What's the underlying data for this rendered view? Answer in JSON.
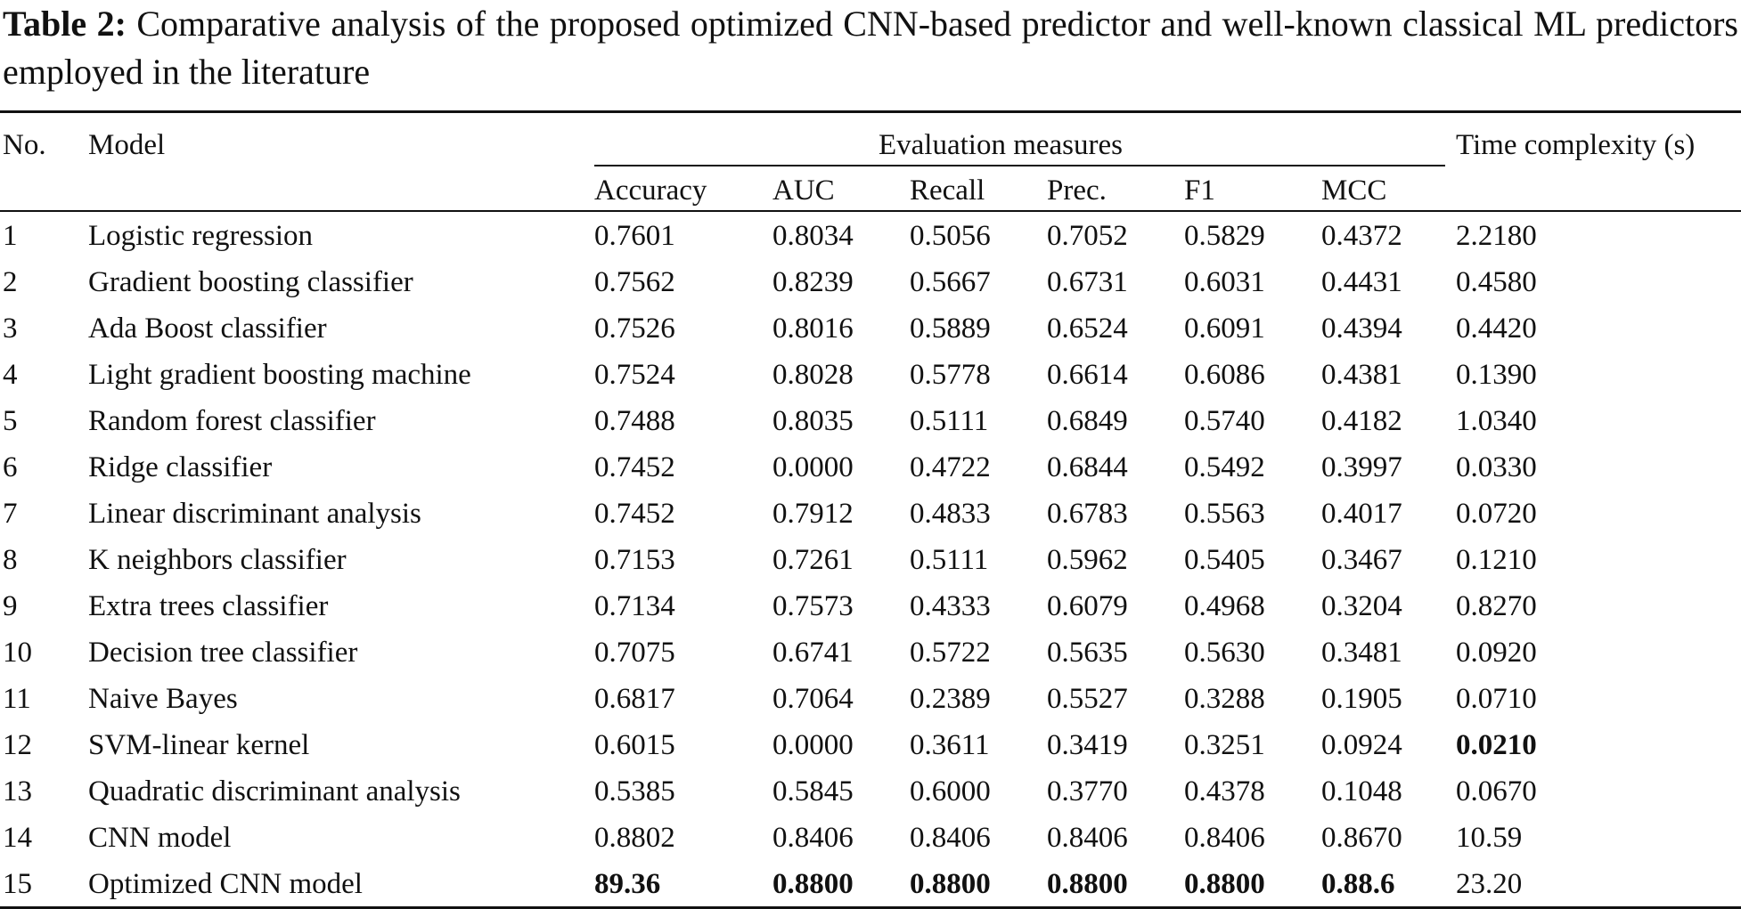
{
  "caption": {
    "label": "Table 2:",
    "text": " Comparative analysis of the proposed optimized CNN-based predictor and well-known classical ML predictors employed in the literature"
  },
  "table": {
    "headers": {
      "no": "No.",
      "model": "Model",
      "group": "Evaluation measures",
      "time": "Time complexity (s)",
      "sub": [
        "Accuracy",
        "AUC",
        "Recall",
        "Prec.",
        "F1",
        "MCC"
      ]
    },
    "rows": [
      {
        "no": "1",
        "model": "Logistic regression",
        "values": [
          "0.7601",
          "0.8034",
          "0.5056",
          "0.7052",
          "0.5829",
          "0.4372",
          "2.2180"
        ]
      },
      {
        "no": "2",
        "model": "Gradient boosting classifier",
        "values": [
          "0.7562",
          "0.8239",
          "0.5667",
          "0.6731",
          "0.6031",
          "0.4431",
          "0.4580"
        ]
      },
      {
        "no": "3",
        "model": "Ada Boost classifier",
        "values": [
          "0.7526",
          "0.8016",
          "0.5889",
          "0.6524",
          "0.6091",
          "0.4394",
          "0.4420"
        ]
      },
      {
        "no": "4",
        "model": "Light gradient boosting machine",
        "values": [
          "0.7524",
          "0.8028",
          "0.5778",
          "0.6614",
          "0.6086",
          "0.4381",
          "0.1390"
        ]
      },
      {
        "no": "5",
        "model": "Random forest classifier",
        "values": [
          "0.7488",
          "0.8035",
          "0.5111",
          "0.6849",
          "0.5740",
          "0.4182",
          "1.0340"
        ]
      },
      {
        "no": "6",
        "model": "Ridge classifier",
        "values": [
          "0.7452",
          "0.0000",
          "0.4722",
          "0.6844",
          "0.5492",
          "0.3997",
          "0.0330"
        ]
      },
      {
        "no": "7",
        "model": "Linear discriminant analysis",
        "values": [
          "0.7452",
          "0.7912",
          "0.4833",
          "0.6783",
          "0.5563",
          "0.4017",
          "0.0720"
        ]
      },
      {
        "no": "8",
        "model": "K neighbors classifier",
        "values": [
          "0.7153",
          "0.7261",
          "0.5111",
          "0.5962",
          "0.5405",
          "0.3467",
          "0.1210"
        ]
      },
      {
        "no": "9",
        "model": "Extra trees classifier",
        "values": [
          "0.7134",
          "0.7573",
          "0.4333",
          "0.6079",
          "0.4968",
          "0.3204",
          "0.8270"
        ]
      },
      {
        "no": "10",
        "model": "Decision tree classifier",
        "values": [
          "0.7075",
          "0.6741",
          "0.5722",
          "0.5635",
          "0.5630",
          "0.3481",
          "0.0920"
        ]
      },
      {
        "no": "11",
        "model": "Naive Bayes",
        "values": [
          "0.6817",
          "0.7064",
          "0.2389",
          "0.5527",
          "0.3288",
          "0.1905",
          "0.0710"
        ]
      },
      {
        "no": "12",
        "model": "SVM-linear kernel",
        "values": [
          "0.6015",
          "0.0000",
          "0.3611",
          "0.3419",
          "0.3251",
          "0.0924",
          "0.0210"
        ],
        "bold": [
          false,
          false,
          false,
          false,
          false,
          false,
          true
        ]
      },
      {
        "no": "13",
        "model": "Quadratic discriminant analysis",
        "values": [
          "0.5385",
          "0.5845",
          "0.6000",
          "0.3770",
          "0.4378",
          "0.1048",
          "0.0670"
        ]
      },
      {
        "no": "14",
        "model": "CNN model",
        "values": [
          "0.8802",
          "0.8406",
          "0.8406",
          "0.8406",
          "0.8406",
          "0.8670",
          "10.59"
        ]
      },
      {
        "no": "15",
        "model": "Optimized CNN model",
        "values": [
          "89.36",
          "0.8800",
          "0.8800",
          "0.8800",
          "0.8800",
          "0.88.6",
          "23.20"
        ],
        "bold": [
          true,
          true,
          true,
          true,
          true,
          true,
          false
        ]
      }
    ]
  }
}
